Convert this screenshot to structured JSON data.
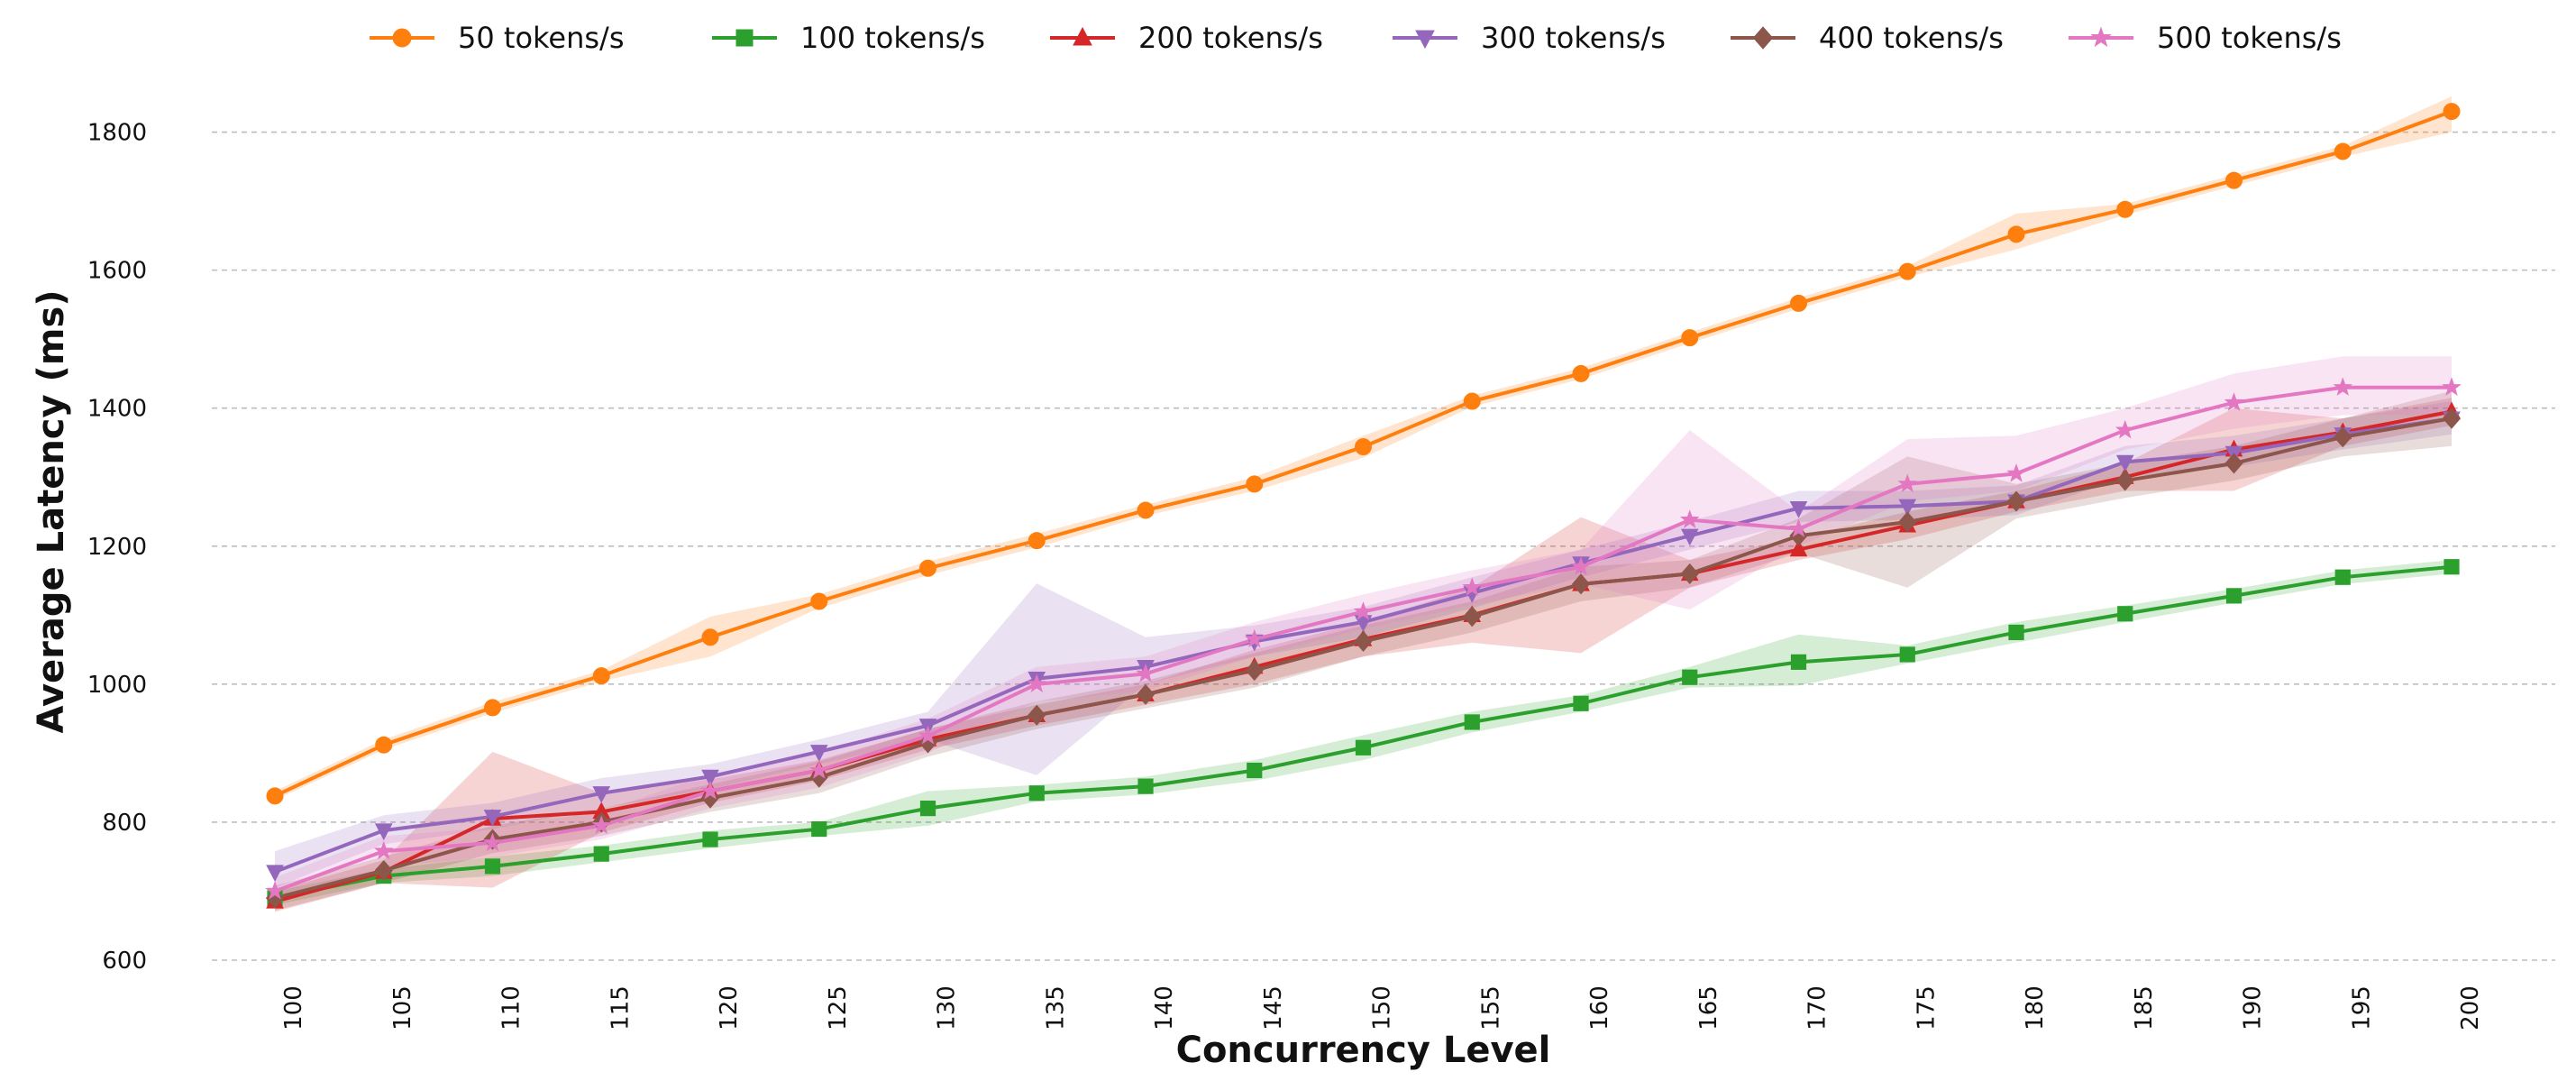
{
  "chart_data": {
    "type": "line",
    "title": "",
    "xlabel": "Concurrency Level",
    "ylabel": "Average Latency (ms)",
    "ylim": [
      600,
      1900
    ],
    "yticks": [
      600,
      800,
      1000,
      1200,
      1400,
      1600,
      1800
    ],
    "grid": "horizontal dashed",
    "legend_position": "top",
    "x": [
      100,
      105,
      110,
      115,
      120,
      125,
      130,
      135,
      140,
      145,
      150,
      155,
      160,
      165,
      170,
      175,
      180,
      185,
      190,
      195,
      200
    ],
    "series": [
      {
        "name": "50 tokens/s",
        "color": "#ff7f0e",
        "marker": "circle",
        "values": [
          838,
          912,
          966,
          1012,
          1068,
          1120,
          1168,
          1208,
          1252,
          1290,
          1344,
          1410,
          1450,
          1502,
          1552,
          1598,
          1652,
          1688,
          1730,
          1772,
          1830
        ],
        "lower": [
          832,
          905,
          958,
          1004,
          1040,
          1110,
          1158,
          1198,
          1244,
          1280,
          1328,
          1402,
          1442,
          1494,
          1544,
          1590,
          1630,
          1680,
          1722,
          1764,
          1800
        ],
        "upper": [
          845,
          920,
          974,
          1020,
          1098,
          1130,
          1178,
          1218,
          1260,
          1300,
          1360,
          1418,
          1458,
          1510,
          1560,
          1606,
          1682,
          1696,
          1738,
          1780,
          1852
        ]
      },
      {
        "name": "100 tokens/s",
        "color": "#2ca02c",
        "marker": "square",
        "values": [
          690,
          722,
          736,
          754,
          775,
          790,
          820,
          842,
          852,
          875,
          908,
          945,
          972,
          1010,
          1032,
          1043,
          1075,
          1102,
          1128,
          1155,
          1170
        ],
        "lower": [
          680,
          712,
          722,
          742,
          762,
          780,
          795,
          830,
          840,
          860,
          890,
          930,
          960,
          995,
          998,
          1030,
          1060,
          1090,
          1118,
          1145,
          1160
        ],
        "upper": [
          700,
          732,
          750,
          766,
          788,
          800,
          845,
          854,
          866,
          890,
          926,
          960,
          984,
          1025,
          1072,
          1056,
          1090,
          1114,
          1138,
          1165,
          1180
        ]
      },
      {
        "name": "200 tokens/s",
        "color": "#d62728",
        "marker": "triangle-up",
        "values": [
          685,
          728,
          805,
          815,
          845,
          875,
          920,
          955,
          985,
          1025,
          1065,
          1100,
          1145,
          1160,
          1195,
          1230,
          1265,
          1300,
          1340,
          1365,
          1395
        ],
        "lower": [
          670,
          712,
          705,
          785,
          828,
          860,
          905,
          940,
          970,
          1000,
          1040,
          1060,
          1045,
          1140,
          1180,
          1210,
          1250,
          1280,
          1280,
          1345,
          1375
        ],
        "upper": [
          700,
          745,
          902,
          842,
          862,
          890,
          935,
          970,
          1000,
          1050,
          1090,
          1140,
          1242,
          1180,
          1212,
          1250,
          1280,
          1320,
          1400,
          1385,
          1415
        ]
      },
      {
        "name": "300 tokens/s",
        "color": "#9467bd",
        "marker": "triangle-down",
        "values": [
          728,
          788,
          808,
          842,
          866,
          902,
          940,
          1008,
          1025,
          1062,
          1090,
          1132,
          1175,
          1215,
          1255,
          1258,
          1265,
          1322,
          1335,
          1362,
          1385
        ],
        "lower": [
          705,
          768,
          790,
          820,
          848,
          884,
          920,
          868,
          1000,
          1040,
          1068,
          1110,
          1155,
          1195,
          1235,
          1238,
          1245,
          1300,
          1315,
          1340,
          1362
        ],
        "upper": [
          758,
          810,
          828,
          864,
          884,
          920,
          960,
          1146,
          1068,
          1085,
          1112,
          1155,
          1195,
          1236,
          1280,
          1280,
          1288,
          1345,
          1360,
          1385,
          1410
        ]
      },
      {
        "name": "400 tokens/s",
        "color": "#8c564b",
        "marker": "diamond",
        "values": [
          690,
          730,
          775,
          800,
          835,
          865,
          915,
          955,
          985,
          1020,
          1062,
          1098,
          1145,
          1160,
          1215,
          1235,
          1265,
          1295,
          1320,
          1358,
          1385
        ],
        "lower": [
          672,
          712,
          755,
          780,
          815,
          842,
          895,
          935,
          965,
          995,
          1040,
          1075,
          1120,
          1140,
          1190,
          1140,
          1240,
          1270,
          1295,
          1330,
          1345
        ],
        "upper": [
          708,
          750,
          795,
          820,
          855,
          888,
          935,
          975,
          1005,
          1045,
          1085,
          1120,
          1170,
          1180,
          1240,
          1330,
          1290,
          1320,
          1345,
          1385,
          1425
        ]
      },
      {
        "name": "500 tokens/s",
        "color": "#e377c2",
        "marker": "star",
        "values": [
          700,
          758,
          770,
          795,
          845,
          875,
          925,
          1000,
          1015,
          1065,
          1105,
          1140,
          1170,
          1238,
          1225,
          1290,
          1305,
          1368,
          1408,
          1430,
          1430
        ],
        "lower": [
          680,
          735,
          750,
          775,
          820,
          850,
          900,
          975,
          990,
          1040,
          1080,
          1115,
          1145,
          1108,
          1200,
          1265,
          1280,
          1340,
          1370,
          1390,
          1390
        ],
        "upper": [
          720,
          780,
          792,
          815,
          870,
          900,
          950,
          1025,
          1040,
          1090,
          1130,
          1165,
          1195,
          1368,
          1250,
          1355,
          1360,
          1400,
          1450,
          1475,
          1475
        ]
      }
    ]
  }
}
